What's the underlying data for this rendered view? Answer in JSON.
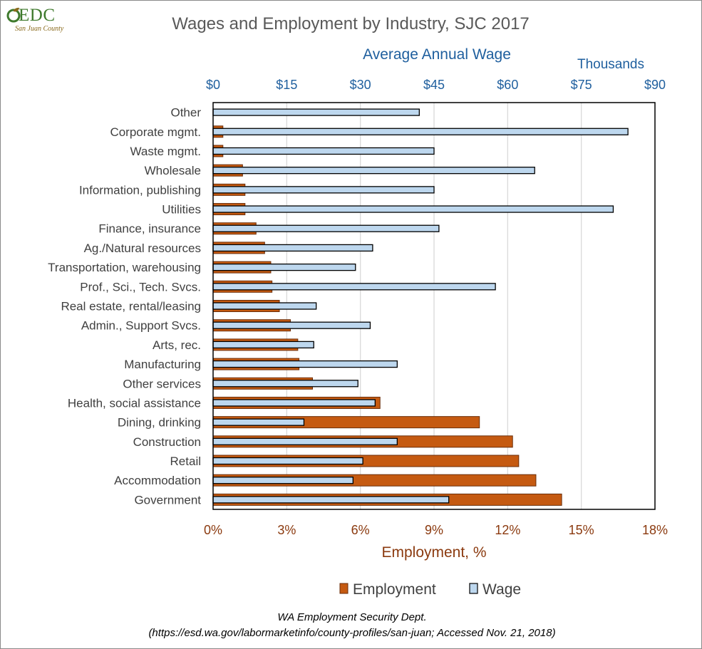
{
  "logo": {
    "brand": "EDC",
    "tagline": "San Juan County"
  },
  "source": {
    "line1": "WA Employment Security Dept.",
    "line2": "(https://esd.wa.gov/labormarketinfo/county-profiles/san-juan; Accessed Nov. 21, 2018)"
  },
  "colors": {
    "employment": "#c55a11",
    "wage": "#bdd7ee",
    "wage_axis": "#1f5f9e",
    "employment_axis": "#8b3a0f"
  },
  "chart_data": {
    "type": "bar",
    "orientation": "horizontal",
    "title": "Wages and Employment by Industry, SJC 2017",
    "categories": [
      "Other",
      "Corporate mgmt.",
      "Waste mgmt.",
      "Wholesale",
      "Information, publishing",
      "Utilities",
      "Finance, insurance",
      "Ag./Natural resources",
      "Transportation, warehousing",
      "Prof., Sci., Tech. Svcs.",
      "Real estate, rental/leasing",
      "Admin., Support Svcs.",
      "Arts, rec.",
      "Manufacturing",
      "Other services",
      "Health, social assistance",
      "Dining, drinking",
      "Construction",
      "Retail",
      "Accommodation",
      "Government"
    ],
    "series": [
      {
        "name": "Employment",
        "axis": "bottom",
        "values": [
          0.0,
          0.4,
          0.4,
          1.2,
          1.3,
          1.3,
          1.75,
          2.1,
          2.35,
          2.4,
          2.7,
          3.15,
          3.45,
          3.5,
          4.05,
          6.8,
          10.85,
          12.2,
          12.45,
          13.15,
          14.2
        ]
      },
      {
        "name": "Wage",
        "axis": "top",
        "values": [
          42,
          84.5,
          45,
          65.5,
          45,
          81.5,
          46,
          32.5,
          29,
          57.5,
          21,
          32,
          20.5,
          37.5,
          29.5,
          33,
          18.5,
          37.5,
          30.5,
          28.5,
          48
        ]
      }
    ],
    "x_bottom": {
      "label": "Employment, %",
      "range": [
        0,
        18
      ],
      "ticks": [
        "0%",
        "3%",
        "6%",
        "9%",
        "12%",
        "15%",
        "18%"
      ]
    },
    "x_top": {
      "label": "Average Annual Wage",
      "units": "Thousands",
      "range": [
        0,
        90
      ],
      "ticks": [
        "$0",
        "$15",
        "$30",
        "$45",
        "$60",
        "$75",
        "$90"
      ]
    },
    "grid": true,
    "legend": {
      "position": "bottom",
      "items": [
        "Employment",
        "Wage"
      ]
    }
  }
}
